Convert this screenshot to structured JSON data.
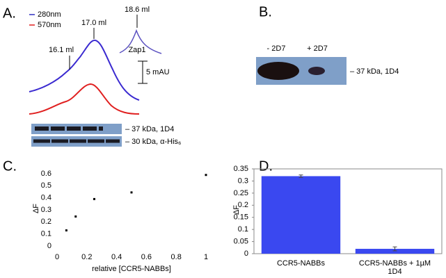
{
  "panels": {
    "a": {
      "label": "A.",
      "legend": [
        "280nm",
        "570nm"
      ],
      "peaks": [
        "16.1 ml",
        "17.0 ml",
        "18.6 ml"
      ],
      "zap": "Zap1",
      "scale": "5 mAU",
      "blots": [
        "– 37 kDa, 1D4",
        "– 30 kDa, α-His₆"
      ]
    },
    "b": {
      "label": "B.",
      "lanes": [
        "- 2D7",
        "+ 2D7"
      ],
      "blot": "– 37 kDa, 1D4"
    }
  },
  "chart_data": [
    {
      "type": "scatter",
      "label": "C.",
      "x": [
        0.0625,
        0.125,
        0.25,
        0.5,
        1
      ],
      "values": [
        0.13,
        0.245,
        0.39,
        0.445,
        0.59
      ],
      "color": "#000000",
      "xlim": [
        0,
        1
      ],
      "xticks": [
        0,
        0.2,
        0.4,
        0.6,
        0.8,
        1
      ],
      "ylim": [
        0,
        0.6
      ],
      "yticks": [
        0,
        0.1,
        0.2,
        0.3,
        0.4,
        0.5,
        0.6
      ],
      "xlabel": "relative [CCR5-NABBs]",
      "ylabel": "ΔF"
    },
    {
      "type": "bar",
      "label": "D.",
      "categories": [
        "CCR5-NABBs",
        "CCR5-NABBs + 1µM 1D4"
      ],
      "values": [
        0.32,
        0.02
      ],
      "errors": [
        0.005,
        0.008
      ],
      "color": "#3a48f0",
      "ylim": [
        0,
        0.35
      ],
      "yticks": [
        0,
        0.05,
        0.1,
        0.15,
        0.2,
        0.25,
        0.3,
        0.35
      ],
      "ylabel": "ΔF"
    }
  ]
}
